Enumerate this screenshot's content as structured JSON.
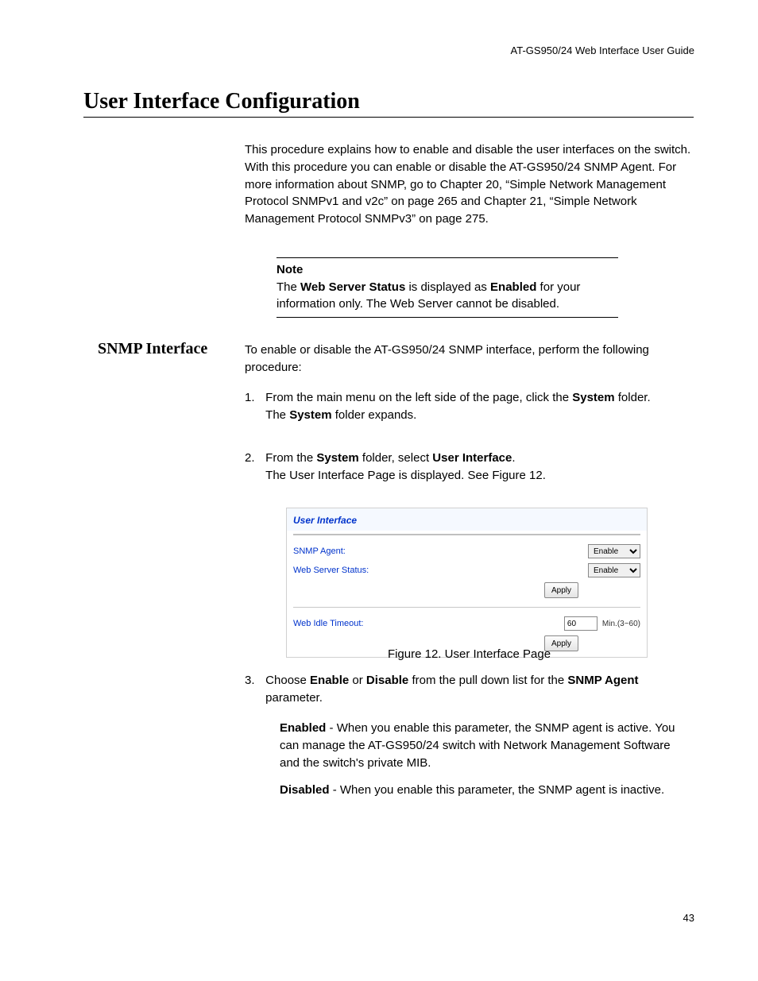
{
  "header": "AT-GS950/24  Web Interface User Guide",
  "pageTitle": "User Interface Configuration",
  "intro": "This procedure explains how to enable and disable the user interfaces on the switch. With this procedure you can enable or disable the AT-GS950/24 SNMP Agent. For more information about SNMP, go to Chapter 20, “Simple Network Management Protocol SNMPv1 and v2c” on page 265 and Chapter 21, “Simple Network Management Protocol SNMPv3” on page 275.",
  "noteLabel": "Note",
  "noteBody": {
    "pre": "The ",
    "b1": "Web Server Status",
    "mid": " is displayed as ",
    "b2": "Enabled",
    "post": " for your information only. The Web Server cannot be disabled."
  },
  "sectionLabel": "SNMP Interface",
  "snmpIntro": "To enable or disable the AT-GS950/24 SNMP interface, perform the following procedure:",
  "step1": {
    "num": "1.",
    "line1a": "From the main menu on the left side of the page, click the ",
    "line1b": "System",
    "line1c": " folder.",
    "line2a": "The ",
    "line2b": "System",
    "line2c": " folder expands."
  },
  "step2": {
    "num": "2.",
    "line1a": "From the ",
    "line1b": "System",
    "line1c": " folder, select ",
    "line1d": "User Interface",
    "line1e": ".",
    "line2": "The User Interface Page is displayed. See Figure 12."
  },
  "figure": {
    "title": "User Interface",
    "snmpLabel": "SNMP Agent:",
    "webLabel": "Web Server Status:",
    "idleLabel": "Web Idle Timeout:",
    "enableOpt": "Enable",
    "idleValue": "60",
    "minmax": "Min.(3~60)",
    "applyLabel": "Apply"
  },
  "caption": "Figure 12. User Interface Page",
  "step3": {
    "num": "3.",
    "a": "Choose ",
    "b": "Enable",
    "c": " or ",
    "d": "Disable",
    "e": " from the pull down list for the ",
    "f": "SNMP Agent",
    "g": " parameter."
  },
  "desc1": {
    "b": "Enabled",
    "rest": " - When you enable this parameter, the SNMP agent is active. You can manage the AT-GS950/24 switch with Network Management Software and the switch's private MIB."
  },
  "desc2": {
    "b": "Disabled",
    "rest": " - When you enable this parameter, the SNMP agent is inactive."
  },
  "pageNum": "43"
}
